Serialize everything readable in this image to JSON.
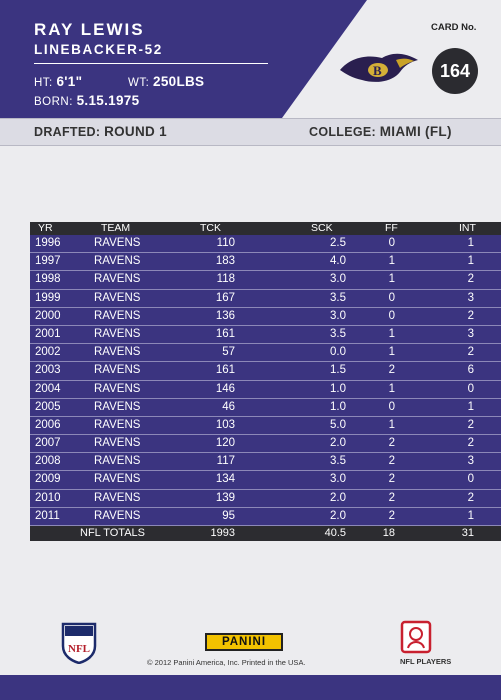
{
  "player": {
    "name": "RAY LEWIS",
    "position": "LINEBACKER-52",
    "ht_label": "HT:",
    "ht": "6'1\"",
    "wt_label": "WT:",
    "wt": "250LBS",
    "born_label": "BORN:",
    "born": "5.15.1975"
  },
  "card": {
    "number_label": "CARD No.",
    "number": "164"
  },
  "draft": {
    "label": "DRAFTED:",
    "value": "ROUND 1"
  },
  "college": {
    "label": "COLLEGE:",
    "value": "MIAMI (FL)"
  },
  "stats": {
    "headers": [
      "YR",
      "TEAM",
      "TCK",
      "SCK",
      "FF",
      "INT"
    ],
    "rows": [
      [
        "1996",
        "RAVENS",
        "110",
        "2.5",
        "0",
        "1"
      ],
      [
        "1997",
        "RAVENS",
        "183",
        "4.0",
        "1",
        "1"
      ],
      [
        "1998",
        "RAVENS",
        "118",
        "3.0",
        "1",
        "2"
      ],
      [
        "1999",
        "RAVENS",
        "167",
        "3.5",
        "0",
        "3"
      ],
      [
        "2000",
        "RAVENS",
        "136",
        "3.0",
        "0",
        "2"
      ],
      [
        "2001",
        "RAVENS",
        "161",
        "3.5",
        "1",
        "3"
      ],
      [
        "2002",
        "RAVENS",
        "57",
        "0.0",
        "1",
        "2"
      ],
      [
        "2003",
        "RAVENS",
        "161",
        "1.5",
        "2",
        "6"
      ],
      [
        "2004",
        "RAVENS",
        "146",
        "1.0",
        "1",
        "0"
      ],
      [
        "2005",
        "RAVENS",
        "46",
        "1.0",
        "0",
        "1"
      ],
      [
        "2006",
        "RAVENS",
        "103",
        "5.0",
        "1",
        "2"
      ],
      [
        "2007",
        "RAVENS",
        "120",
        "2.0",
        "2",
        "2"
      ],
      [
        "2008",
        "RAVENS",
        "117",
        "3.5",
        "2",
        "3"
      ],
      [
        "2009",
        "RAVENS",
        "134",
        "3.0",
        "2",
        "0"
      ],
      [
        "2010",
        "RAVENS",
        "139",
        "2.0",
        "2",
        "2"
      ],
      [
        "2011",
        "RAVENS",
        "95",
        "2.0",
        "2",
        "1"
      ]
    ],
    "totals": {
      "label": "NFL TOTALS",
      "tck": "1993",
      "sck": "40.5",
      "ff": "18",
      "int": "31"
    }
  },
  "footer": {
    "panini": "PANINI",
    "copyright": "© 2012 Panini America, Inc. Printed in the USA.",
    "nfl_players": "NFL PLAYERS",
    "nfl_logo_text": "NFL"
  },
  "colors": {
    "purple": "#3b3480",
    "dark": "#2c2c30",
    "gold": "#f2c200"
  },
  "icons": {
    "team_logo": "ravens-logo-icon",
    "nfl_shield": "nfl-shield-icon",
    "nflpa": "nfl-players-icon"
  }
}
